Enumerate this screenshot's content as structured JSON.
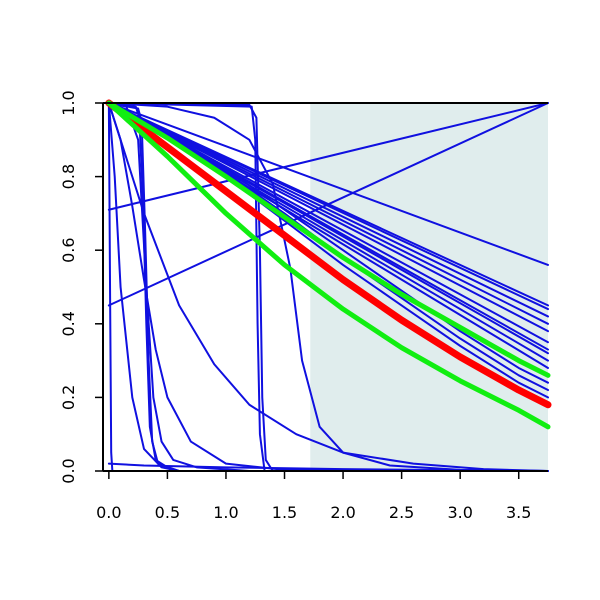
{
  "chart_data": {
    "type": "line",
    "title": "",
    "xlabel": "",
    "ylabel": "",
    "xlim": [
      -0.05,
      3.75
    ],
    "ylim": [
      0,
      1
    ],
    "grid": false,
    "legend": "none",
    "x_ticks": [
      "0.0",
      "0.5",
      "1.0",
      "1.5",
      "2.0",
      "2.5",
      "3.0",
      "3.5"
    ],
    "x_tick_values": [
      0,
      0.5,
      1,
      1.5,
      2,
      2.5,
      3,
      3.5
    ],
    "y_ticks": [
      "0.0",
      "0.2",
      "0.4",
      "0.6",
      "0.8",
      "1.0"
    ],
    "y_tick_values": [
      0,
      0.2,
      0.4,
      0.6,
      0.8,
      1.0
    ],
    "shaded_region": {
      "x_from": 1.72,
      "x_to": 3.75,
      "color": "#e0eded"
    },
    "colors": {
      "blue": "#1010e0",
      "red": "#ff0000",
      "green": "#11ee11",
      "axis": "#000000"
    },
    "series": [
      {
        "color": "blue",
        "width": 2,
        "points": [
          [
            0,
            1
          ],
          [
            3.75,
            0.28
          ]
        ]
      },
      {
        "color": "blue",
        "width": 2,
        "points": [
          [
            0,
            1
          ],
          [
            3.75,
            0.3
          ]
        ]
      },
      {
        "color": "blue",
        "width": 2,
        "points": [
          [
            0,
            1
          ],
          [
            3.75,
            0.32
          ]
        ]
      },
      {
        "color": "blue",
        "width": 2,
        "points": [
          [
            0,
            1
          ],
          [
            3.75,
            0.33
          ]
        ]
      },
      {
        "color": "blue",
        "width": 2,
        "points": [
          [
            0,
            1
          ],
          [
            3.75,
            0.35
          ]
        ]
      },
      {
        "color": "blue",
        "width": 2,
        "points": [
          [
            0,
            1
          ],
          [
            3.75,
            0.38
          ]
        ]
      },
      {
        "color": "blue",
        "width": 2,
        "points": [
          [
            0,
            1
          ],
          [
            3.75,
            0.4
          ]
        ]
      },
      {
        "color": "blue",
        "width": 2,
        "points": [
          [
            0,
            1
          ],
          [
            3.75,
            0.42
          ]
        ]
      },
      {
        "color": "blue",
        "width": 2,
        "points": [
          [
            0,
            1
          ],
          [
            3.75,
            0.44
          ]
        ]
      },
      {
        "color": "blue",
        "width": 2,
        "points": [
          [
            0,
            1
          ],
          [
            3.75,
            0.45
          ]
        ]
      },
      {
        "color": "blue",
        "width": 2,
        "points": [
          [
            0,
            1
          ],
          [
            3.75,
            0.56
          ]
        ]
      },
      {
        "color": "blue",
        "width": 2,
        "points": [
          [
            0,
            1
          ],
          [
            0.5,
            0.92
          ],
          [
            1,
            0.81
          ],
          [
            1.5,
            0.7
          ],
          [
            2,
            0.58
          ],
          [
            2.5,
            0.47
          ],
          [
            3,
            0.36
          ],
          [
            3.5,
            0.26
          ],
          [
            3.75,
            0.22
          ]
        ]
      },
      {
        "color": "blue",
        "width": 2,
        "points": [
          [
            0,
            1
          ],
          [
            0.5,
            0.91
          ],
          [
            1,
            0.8
          ],
          [
            1.5,
            0.68
          ],
          [
            2,
            0.56
          ],
          [
            2.5,
            0.45
          ],
          [
            3,
            0.34
          ],
          [
            3.5,
            0.24
          ],
          [
            3.75,
            0.2
          ]
        ]
      },
      {
        "color": "blue",
        "width": 2,
        "points": [
          [
            0,
            1
          ],
          [
            0.5,
            0.92
          ],
          [
            1,
            0.82
          ],
          [
            1.5,
            0.71
          ],
          [
            2,
            0.6
          ],
          [
            2.5,
            0.49
          ],
          [
            3,
            0.38
          ],
          [
            3.5,
            0.28
          ],
          [
            3.75,
            0.24
          ]
        ]
      },
      {
        "color": "blue",
        "width": 2,
        "points": [
          [
            0,
            0.45
          ],
          [
            3.75,
            1.0
          ]
        ]
      },
      {
        "color": "blue",
        "width": 2,
        "points": [
          [
            0,
            0.71
          ],
          [
            3.75,
            1.0
          ]
        ]
      },
      {
        "color": "blue",
        "width": 2,
        "points": [
          [
            0,
            1
          ],
          [
            0.05,
            0.8
          ],
          [
            0.1,
            0.5
          ],
          [
            0.2,
            0.2
          ],
          [
            0.3,
            0.06
          ],
          [
            0.45,
            0.01
          ],
          [
            0.6,
            0
          ]
        ]
      },
      {
        "color": "blue",
        "width": 2,
        "points": [
          [
            0,
            1
          ],
          [
            0.3,
            0.7
          ],
          [
            0.6,
            0.45
          ],
          [
            0.9,
            0.29
          ],
          [
            1.2,
            0.18
          ],
          [
            1.6,
            0.1
          ],
          [
            2.0,
            0.05
          ],
          [
            2.6,
            0.02
          ],
          [
            3.2,
            0.005
          ],
          [
            3.75,
            0
          ]
        ]
      },
      {
        "color": "blue",
        "width": 2,
        "points": [
          [
            0,
            1
          ],
          [
            0.1,
            0.9
          ],
          [
            0.2,
            0.72
          ],
          [
            0.3,
            0.52
          ],
          [
            0.4,
            0.33
          ],
          [
            0.5,
            0.2
          ],
          [
            0.7,
            0.08
          ],
          [
            1.0,
            0.02
          ],
          [
            1.5,
            0.003
          ],
          [
            3.75,
            0
          ]
        ]
      },
      {
        "color": "blue",
        "width": 2,
        "points": [
          [
            0,
            1
          ],
          [
            0.25,
            0.985
          ],
          [
            0.28,
            0.95
          ],
          [
            0.31,
            0.65
          ],
          [
            0.34,
            0.3
          ],
          [
            0.37,
            0.08
          ],
          [
            0.42,
            0.02
          ],
          [
            0.6,
            0
          ]
        ]
      },
      {
        "color": "blue",
        "width": 2,
        "points": [
          [
            0,
            1
          ],
          [
            0.23,
            0.99
          ],
          [
            0.26,
            0.96
          ],
          [
            0.29,
            0.75
          ],
          [
            0.32,
            0.4
          ],
          [
            0.35,
            0.12
          ],
          [
            0.4,
            0.03
          ],
          [
            0.55,
            0
          ]
        ]
      },
      {
        "color": "blue",
        "width": 2,
        "points": [
          [
            0,
            1
          ],
          [
            0.15,
            0.99
          ],
          [
            0.25,
            0.9
          ],
          [
            0.32,
            0.5
          ],
          [
            0.38,
            0.2
          ],
          [
            0.45,
            0.08
          ],
          [
            0.55,
            0.03
          ],
          [
            0.75,
            0.01
          ],
          [
            1.2,
            0
          ]
        ]
      },
      {
        "color": "blue",
        "width": 2,
        "points": [
          [
            0,
            1
          ],
          [
            0.5,
            0.99
          ],
          [
            0.9,
            0.96
          ],
          [
            1.2,
            0.9
          ],
          [
            1.4,
            0.78
          ],
          [
            1.55,
            0.55
          ],
          [
            1.65,
            0.3
          ],
          [
            1.8,
            0.12
          ],
          [
            2.0,
            0.05
          ],
          [
            2.4,
            0.015
          ],
          [
            3.0,
            0.003
          ],
          [
            3.75,
            0
          ]
        ]
      },
      {
        "color": "blue",
        "width": 2,
        "points": [
          [
            0,
            1
          ],
          [
            1.2,
            0.995
          ],
          [
            1.26,
            0.96
          ],
          [
            1.29,
            0.6
          ],
          [
            1.31,
            0.2
          ],
          [
            1.34,
            0.03
          ],
          [
            1.4,
            0
          ]
        ]
      },
      {
        "color": "blue",
        "width": 2,
        "points": [
          [
            0,
            1
          ],
          [
            1.22,
            0.99
          ],
          [
            1.25,
            0.9
          ],
          [
            1.27,
            0.4
          ],
          [
            1.29,
            0.1
          ],
          [
            1.33,
            0
          ]
        ]
      },
      {
        "color": "blue",
        "width": 2,
        "points": [
          [
            0,
            1
          ],
          [
            0.01,
            0.5
          ],
          [
            0.02,
            0.05
          ],
          [
            0.03,
            0
          ],
          [
            0.05,
            0
          ]
        ]
      },
      {
        "color": "blue",
        "width": 2,
        "points": [
          [
            0,
            0.02
          ],
          [
            0.3,
            0.015
          ],
          [
            1,
            0.01
          ],
          [
            2,
            0.005
          ],
          [
            3.75,
            0
          ]
        ]
      },
      {
        "color": "red",
        "width": 7,
        "points": [
          [
            0,
            1
          ],
          [
            0.5,
            0.88
          ],
          [
            1,
            0.76
          ],
          [
            1.5,
            0.64
          ],
          [
            2,
            0.52
          ],
          [
            2.5,
            0.41
          ],
          [
            3,
            0.31
          ],
          [
            3.5,
            0.22
          ],
          [
            3.75,
            0.18
          ]
        ]
      },
      {
        "color": "green",
        "width": 5,
        "points": [
          [
            0,
            1
          ],
          [
            0.5,
            0.905
          ],
          [
            1,
            0.8
          ],
          [
            1.5,
            0.69
          ],
          [
            2,
            0.58
          ],
          [
            2.5,
            0.48
          ],
          [
            3,
            0.39
          ],
          [
            3.5,
            0.3
          ],
          [
            3.75,
            0.26
          ]
        ]
      },
      {
        "color": "green",
        "width": 5,
        "points": [
          [
            0,
            1
          ],
          [
            0.5,
            0.855
          ],
          [
            1,
            0.7
          ],
          [
            1.5,
            0.56
          ],
          [
            2,
            0.44
          ],
          [
            2.5,
            0.335
          ],
          [
            3,
            0.245
          ],
          [
            3.5,
            0.165
          ],
          [
            3.75,
            0.12
          ]
        ]
      }
    ]
  }
}
